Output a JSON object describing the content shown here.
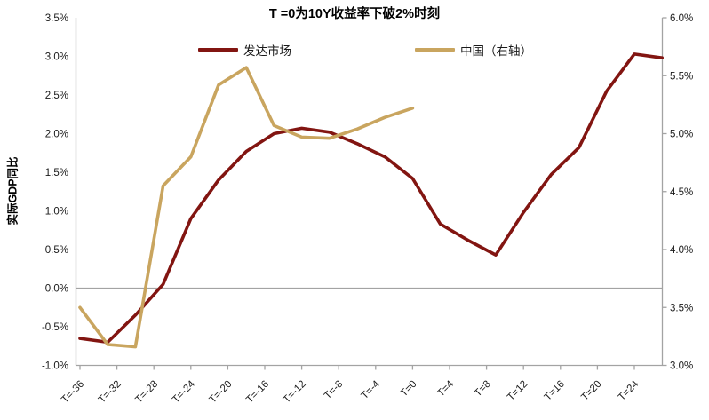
{
  "chart_data": {
    "type": "line",
    "title": "T =0为10Y收益率下破2%时刻",
    "ylabel_left": "实际GDP同比",
    "legend_position": "top",
    "grid": "zero-line-only",
    "axes": {
      "left": {
        "min": -1.0,
        "max": 3.5,
        "step": 0.5,
        "tick_labels": [
          "3.5%",
          "3.0%",
          "2.5%",
          "2.0%",
          "1.5%",
          "1.0%",
          "0.5%",
          "0.0%",
          "-0.5%",
          "-1.0%"
        ]
      },
      "right": {
        "min": 3.0,
        "max": 6.0,
        "step": 0.5,
        "tick_labels": [
          "6.0%",
          "5.5%",
          "5.0%",
          "4.5%",
          "4.0%",
          "3.5%",
          "3.0%"
        ]
      },
      "x": {
        "tick_values": [
          -36,
          -32,
          -28,
          -24,
          -20,
          -16,
          -12,
          -8,
          -4,
          0,
          4,
          8,
          12,
          16,
          20,
          24
        ],
        "tick_labels": [
          "T=-36",
          "T=-32",
          "T=-28",
          "T=-24",
          "T=-20",
          "T=-16",
          "T=-12",
          "T=-8",
          "T=-4",
          "T=0",
          "T=4",
          "T=8",
          "T=12",
          "T=16",
          "T=20",
          "T=24"
        ]
      }
    },
    "series": [
      {
        "name": "发达市场",
        "axis": "left",
        "color": "#821511",
        "x": [
          -36,
          -33,
          -30,
          -27,
          -24,
          -21,
          -18,
          -15,
          -12,
          -9,
          -6,
          -3,
          0,
          3,
          6,
          9,
          12,
          15,
          18,
          21,
          24,
          27
        ],
        "values": [
          -0.65,
          -0.7,
          -0.35,
          0.05,
          0.9,
          1.4,
          1.77,
          2.0,
          2.07,
          2.02,
          1.87,
          1.7,
          1.42,
          0.83,
          0.62,
          0.43,
          0.98,
          1.47,
          1.82,
          2.55,
          3.03,
          2.98
        ]
      },
      {
        "name": "中国（右轴）",
        "axis": "right",
        "color": "#c9a55f",
        "x": [
          -36,
          -33,
          -30,
          -27,
          -24,
          -21,
          -18,
          -15,
          -12,
          -9,
          -6,
          -3,
          0
        ],
        "values": [
          3.5,
          3.18,
          3.16,
          4.55,
          4.8,
          5.42,
          5.57,
          5.07,
          4.97,
          4.96,
          5.04,
          5.14,
          5.22
        ]
      }
    ]
  }
}
